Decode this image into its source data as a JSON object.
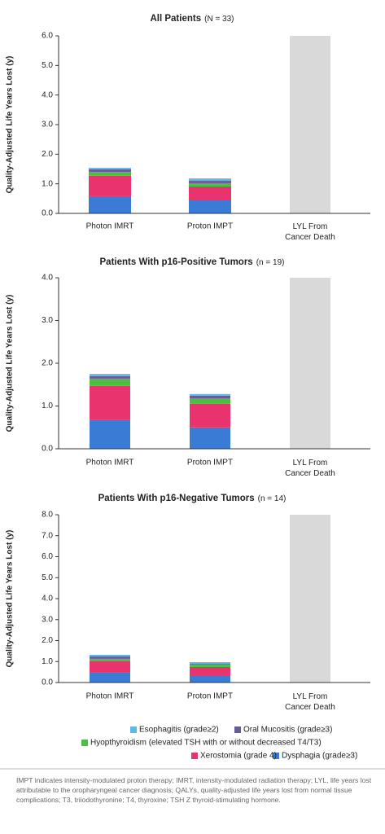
{
  "chart_data": [
    {
      "type": "bar",
      "stacked": true,
      "title": "All Patients",
      "subtitle": "(N = 33)",
      "y_label": "Quality-Adjusted Life Years Lost (y)",
      "categories": [
        "Photon IMRT",
        "Proton IMPT",
        "LYL From Cancer Death"
      ],
      "ylim": [
        0,
        6
      ],
      "yticks": [
        {
          "value": 0,
          "label": "0.0"
        },
        {
          "value": 1,
          "label": "1.0"
        },
        {
          "value": 2,
          "label": "2.0"
        },
        {
          "value": 3,
          "label": "3.0"
        },
        {
          "value": 4,
          "label": "4.0"
        },
        {
          "value": 5,
          "label": "5.0"
        },
        {
          "value": 6,
          "label": "6.0"
        }
      ],
      "series": [
        {
          "name": "Dysphagia (grade≥3)",
          "color": "#3a7bd5",
          "values": [
            0.58,
            0.44,
            null
          ]
        },
        {
          "name": "Xerostomia (grade 4)",
          "color": "#e8336f",
          "values": [
            0.69,
            0.47,
            null
          ]
        },
        {
          "name": "Hyopthyroidism (elevated TSH with or without decreased T4/T3)",
          "color": "#4cbf3f",
          "values": [
            0.13,
            0.11,
            null
          ]
        },
        {
          "name": "Oral Mucositis (grade≥3)",
          "color": "#6b5b95",
          "values": [
            0.09,
            0.08,
            null
          ]
        },
        {
          "name": "Esophagitis (grade≥2)",
          "color": "#5bb8e8",
          "values": [
            0.05,
            0.08,
            null
          ]
        },
        {
          "color": "#d9d9d9",
          "values": [
            null,
            null,
            6
          ]
        }
      ]
    },
    {
      "type": "bar",
      "stacked": true,
      "title": "Patients With p16-Positive Tumors",
      "subtitle": "(n = 19)",
      "y_label": "Quality-Adjusted Life Years Lost (y)",
      "categories": [
        "Photon IMRT",
        "Proton IMPT",
        "LYL From Cancer Death"
      ],
      "ylim": [
        0,
        4
      ],
      "yticks": [
        {
          "value": 0,
          "label": "0.0"
        },
        {
          "value": 1,
          "label": "1.0"
        },
        {
          "value": 2,
          "label": "2.0"
        },
        {
          "value": 3,
          "label": "3.0"
        },
        {
          "value": 4,
          "label": "4.0"
        }
      ],
      "series": [
        {
          "color": "#3a7bd5",
          "values": [
            0.67,
            0.5,
            null
          ]
        },
        {
          "color": "#e8336f",
          "values": [
            0.8,
            0.55,
            null
          ]
        },
        {
          "color": "#4cbf3f",
          "values": [
            0.17,
            0.13,
            null
          ]
        },
        {
          "color": "#6b5b95",
          "values": [
            0.06,
            0.06,
            null
          ]
        },
        {
          "color": "#5bb8e8",
          "values": [
            0.05,
            0.04,
            null
          ]
        },
        {
          "color": "#d9d9d9",
          "values": [
            null,
            null,
            4
          ]
        }
      ]
    },
    {
      "type": "bar",
      "stacked": true,
      "title": "Patients With p16-Negative Tumors",
      "subtitle": "(n = 14)",
      "y_label": "Quality-Adjusted Life Years Lost (y)",
      "categories": [
        "Photon IMRT",
        "Proton IMPT",
        "LYL From Cancer Death"
      ],
      "ylim": [
        0,
        8
      ],
      "yticks": [
        {
          "value": 0,
          "label": "0.0"
        },
        {
          "value": 1,
          "label": "1.0"
        },
        {
          "value": 2,
          "label": "2.0"
        },
        {
          "value": 3,
          "label": "3.0"
        },
        {
          "value": 4,
          "label": "4.0"
        },
        {
          "value": 5,
          "label": "5.0"
        },
        {
          "value": 6,
          "label": "6.0"
        },
        {
          "value": 7,
          "label": "7.0"
        },
        {
          "value": 8,
          "label": "8.0"
        }
      ],
      "series": [
        {
          "color": "#3a7bd5",
          "values": [
            0.47,
            0.35,
            null
          ]
        },
        {
          "color": "#e8336f",
          "values": [
            0.54,
            0.39,
            null
          ]
        },
        {
          "color": "#4cbf3f",
          "values": [
            0.12,
            0.11,
            null
          ]
        },
        {
          "color": "#6b5b95",
          "values": [
            0.11,
            0.04,
            null
          ]
        },
        {
          "color": "#5bb8e8",
          "values": [
            0.08,
            0.08,
            null
          ]
        },
        {
          "color": "#d9d9d9",
          "values": [
            null,
            null,
            8
          ]
        }
      ]
    }
  ],
  "footnote": "IMPT indicates intensity-modulated proton therapy; IMRT, intensity-modulated radiation therapy; LYL, life years lost attributable to the oropharyngeal cancer diagnosis; QALYs, quality-adjusted life years lost from normal tissue complications; T3, triiodothyronine; T4, thyroxine; TSH Z thyroid-stimulating hormone."
}
